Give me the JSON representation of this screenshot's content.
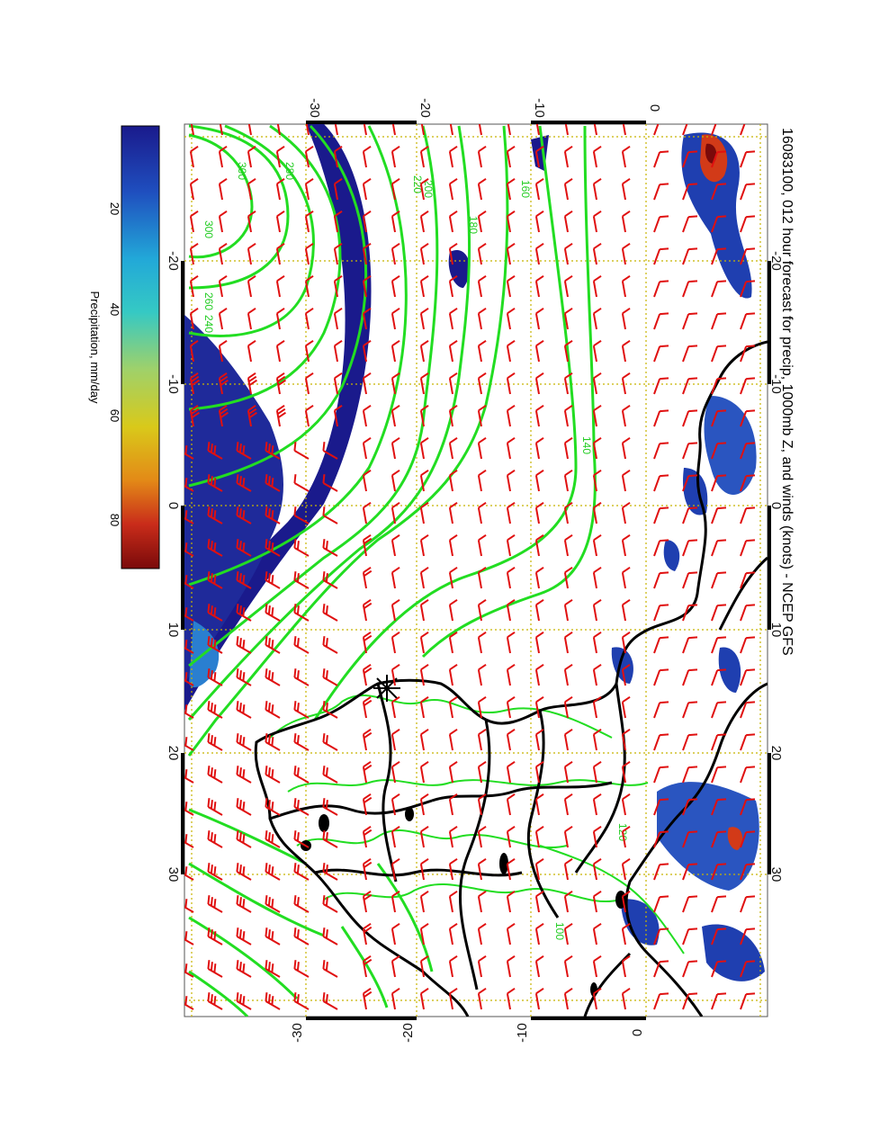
{
  "title": "16083100, 012 hour forecast for precip, 1000mb Z, and winds (knots) - NCEP GFS",
  "colorbar": {
    "label": "Precipitation, mm/day",
    "ticks": [
      "20",
      "40",
      "60",
      "80"
    ],
    "colors": [
      "#1a1a8c",
      "#1f4fbf",
      "#22a8d8",
      "#35c9c4",
      "#9fd16a",
      "#d9c91a",
      "#e38a17",
      "#c92c1a",
      "#7a0a0a"
    ]
  },
  "axes": {
    "longitude_ticks": [
      "-20",
      "-10",
      "0",
      "10",
      "20",
      "30"
    ],
    "latitude_ticks": [
      "-30",
      "-20",
      "-10",
      "0"
    ]
  },
  "contour_labels": [
    "300",
    "280",
    "300",
    "260",
    "240",
    "220",
    "200",
    "180",
    "160",
    "140",
    "120",
    "100"
  ],
  "colors": {
    "contours": "#22dd22",
    "wind_barbs": "#e01010",
    "coastlines": "#000000",
    "grid": "#c8b400",
    "precip_low": "#1a1a8c"
  },
  "station_marker": "asterisk-icon"
}
